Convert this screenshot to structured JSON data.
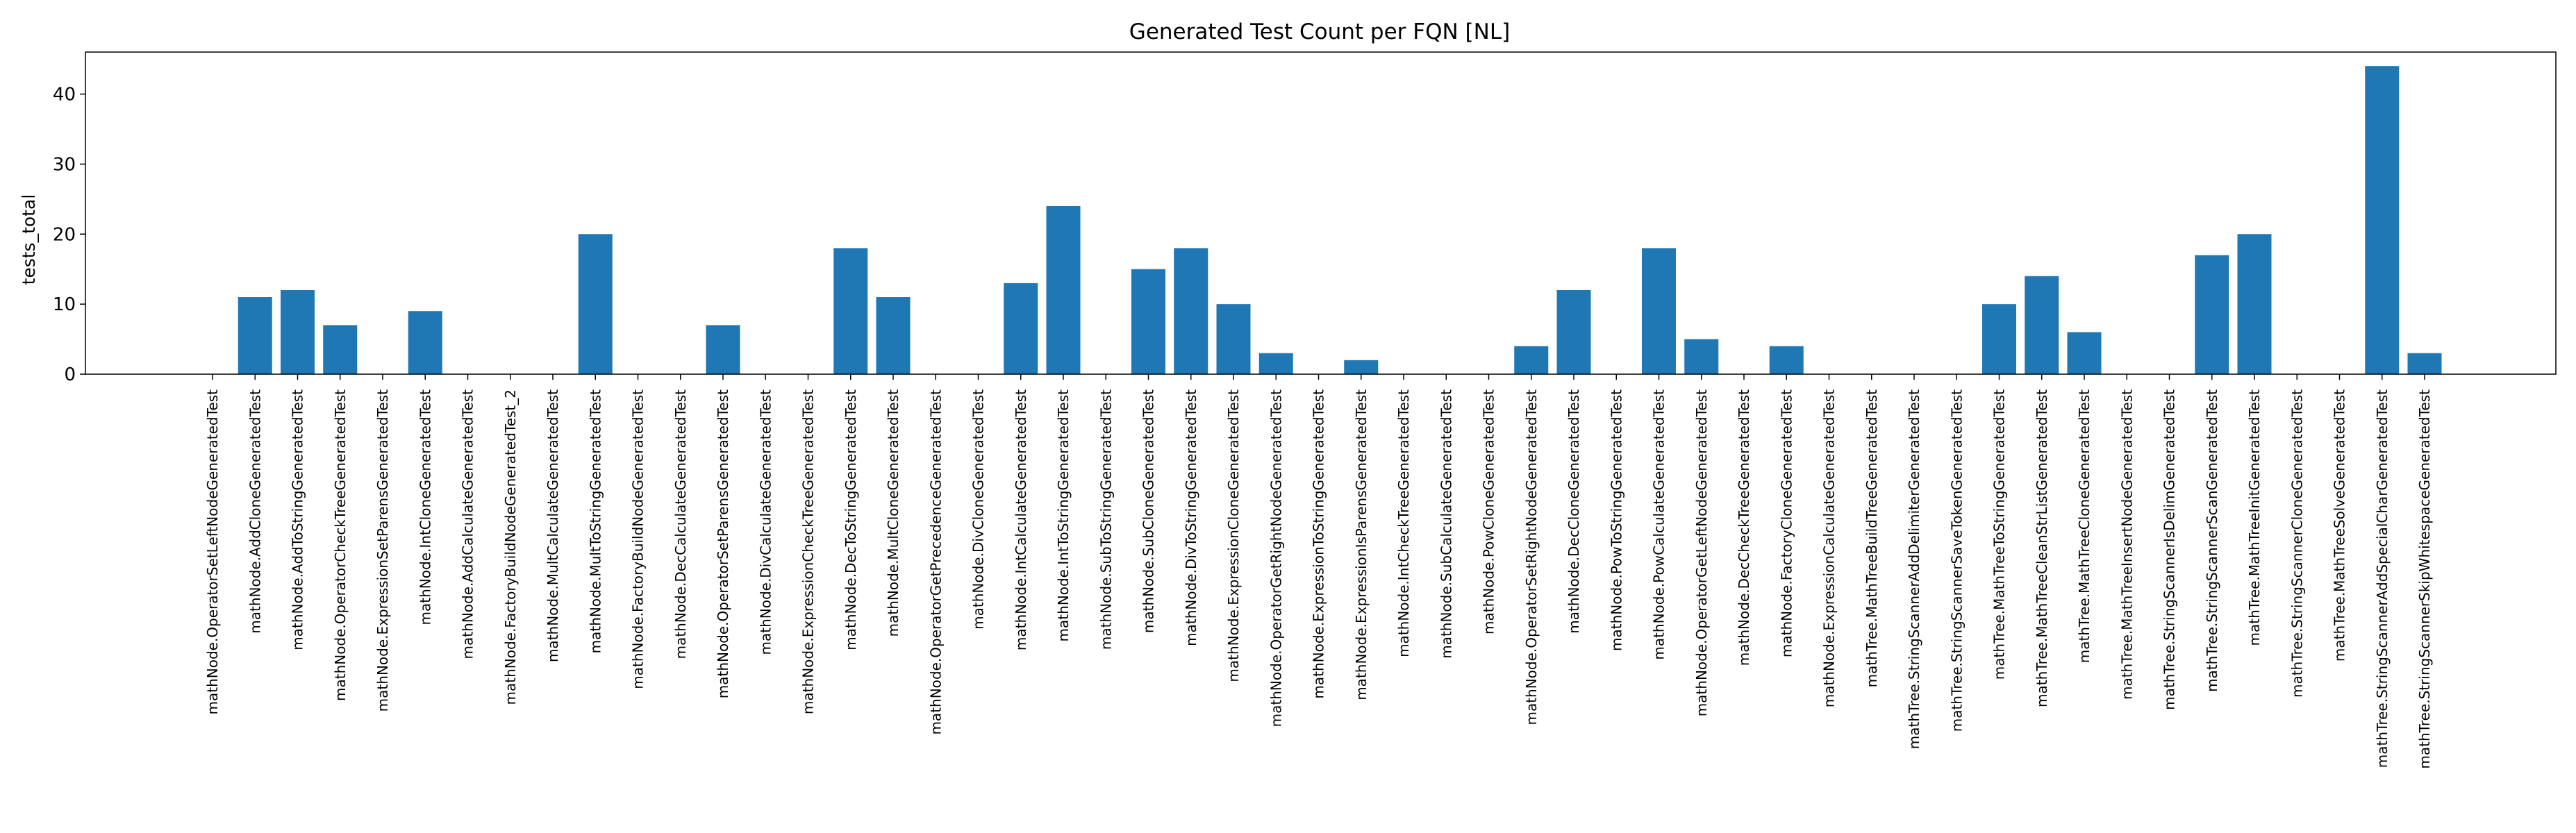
{
  "chart_data": {
    "type": "bar",
    "title": "Generated Test Count per FQN [NL]",
    "xlabel": "",
    "ylabel": "tests_total",
    "ylim": [
      0,
      46
    ],
    "yticks": [
      0,
      10,
      20,
      30,
      40
    ],
    "grid": false,
    "bar_color": "#1f77b4",
    "categories": [
      "mathNode.OperatorSetLeftNodeGeneratedTest",
      "mathNode.AddCloneGeneratedTest",
      "mathNode.AddToStringGeneratedTest",
      "mathNode.OperatorCheckTreeGeneratedTest",
      "mathNode.ExpressionSetParensGeneratedTest",
      "mathNode.IntCloneGeneratedTest",
      "mathNode.AddCalculateGeneratedTest",
      "mathNode.FactoryBuildNodeGeneratedTest_2",
      "mathNode.MultCalculateGeneratedTest",
      "mathNode.MultToStringGeneratedTest",
      "mathNode.FactoryBuildNodeGeneratedTest",
      "mathNode.DecCalculateGeneratedTest",
      "mathNode.OperatorSetParensGeneratedTest",
      "mathNode.DivCalculateGeneratedTest",
      "mathNode.ExpressionCheckTreeGeneratedTest",
      "mathNode.DecToStringGeneratedTest",
      "mathNode.MultCloneGeneratedTest",
      "mathNode.OperatorGetPrecedenceGeneratedTest",
      "mathNode.DivCloneGeneratedTest",
      "mathNode.IntCalculateGeneratedTest",
      "mathNode.IntToStringGeneratedTest",
      "mathNode.SubToStringGeneratedTest",
      "mathNode.SubCloneGeneratedTest",
      "mathNode.DivToStringGeneratedTest",
      "mathNode.ExpressionCloneGeneratedTest",
      "mathNode.OperatorGetRightNodeGeneratedTest",
      "mathNode.ExpressionToStringGeneratedTest",
      "mathNode.ExpressionIsParensGeneratedTest",
      "mathNode.IntCheckTreeGeneratedTest",
      "mathNode.SubCalculateGeneratedTest",
      "mathNode.PowCloneGeneratedTest",
      "mathNode.OperatorSetRightNodeGeneratedTest",
      "mathNode.DecCloneGeneratedTest",
      "mathNode.PowToStringGeneratedTest",
      "mathNode.PowCalculateGeneratedTest",
      "mathNode.OperatorGetLeftNodeGeneratedTest",
      "mathNode.DecCheckTreeGeneratedTest",
      "mathNode.FactoryCloneGeneratedTest",
      "mathNode.ExpressionCalculateGeneratedTest",
      "mathTree.MathTreeBuildTreeGeneratedTest",
      "mathTree.StringScannerAddDelimiterGeneratedTest",
      "mathTree.StringScannerSaveTokenGeneratedTest",
      "mathTree.MathTreeToStringGeneratedTest",
      "mathTree.MathTreeCleanStrListGeneratedTest",
      "mathTree.MathTreeCloneGeneratedTest",
      "mathTree.MathTreeInsertNodeGeneratedTest",
      "mathTree.StringScannerIsDelimGeneratedTest",
      "mathTree.StringScannerScanGeneratedTest",
      "mathTree.MathTreeInitGeneratedTest",
      "mathTree.StringScannerCloneGeneratedTest",
      "mathTree.MathTreeSolveGeneratedTest",
      "mathTree.StringScannerAddSpecialCharGeneratedTest",
      "mathTree.StringScannerSkipWhitespaceGeneratedTest"
    ],
    "values": [
      0,
      11,
      12,
      7,
      0,
      9,
      0,
      0,
      0,
      20,
      0,
      0,
      7,
      0,
      0,
      18,
      11,
      0,
      0,
      13,
      24,
      0,
      15,
      18,
      10,
      3,
      0,
      2,
      0,
      0,
      0,
      4,
      12,
      0,
      18,
      5,
      0,
      4,
      0,
      0,
      0,
      0,
      10,
      14,
      6,
      0,
      0,
      17,
      20,
      0,
      0,
      44,
      3
    ]
  }
}
